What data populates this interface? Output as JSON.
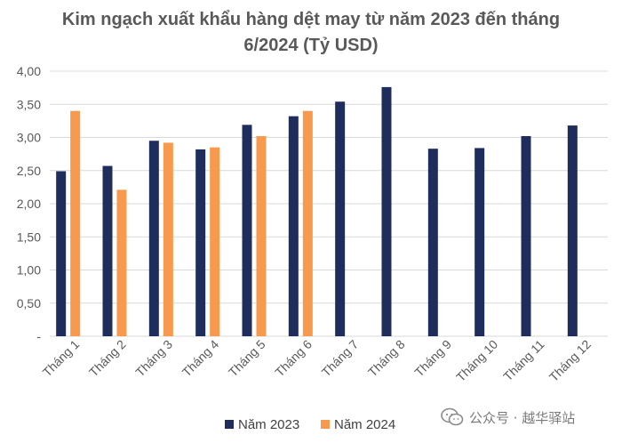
{
  "chart_data": {
    "type": "bar",
    "title_lines": [
      "Kim ngạch xuất khẩu hàng dệt may từ năm 2023 đến tháng",
      "6/2024 (Tỷ USD)"
    ],
    "categories": [
      "Tháng 1",
      "Tháng 2",
      "Tháng 3",
      "Tháng 4",
      "Tháng 5",
      "Tháng 6",
      "Tháng 7",
      "Tháng 8",
      "Tháng 9",
      "Tháng 10",
      "Tháng 11",
      "Tháng 12"
    ],
    "series": [
      {
        "name": "Năm 2023",
        "color": "#1f2d5c",
        "values": [
          2.49,
          2.57,
          2.95,
          2.82,
          3.19,
          3.32,
          3.54,
          3.76,
          2.83,
          2.84,
          3.02,
          3.18
        ]
      },
      {
        "name": "Năm 2024",
        "color": "#f79a4d",
        "values": [
          3.4,
          2.21,
          2.92,
          2.85,
          3.02,
          3.4,
          null,
          null,
          null,
          null,
          null,
          null
        ]
      }
    ],
    "ylim": [
      0,
      4
    ],
    "yticks": [
      {
        "value": 0,
        "label": "-"
      },
      {
        "value": 0.5,
        "label": "0,50"
      },
      {
        "value": 1.0,
        "label": "1,00"
      },
      {
        "value": 1.5,
        "label": "1,50"
      },
      {
        "value": 2.0,
        "label": "2,00"
      },
      {
        "value": 2.5,
        "label": "2,50"
      },
      {
        "value": 3.0,
        "label": "3,00"
      },
      {
        "value": 3.5,
        "label": "3,50"
      },
      {
        "value": 4.0,
        "label": "4,00"
      }
    ],
    "grid": true,
    "legend_position": "bottom"
  },
  "watermark": {
    "text": "公众号 · 越华驿站",
    "icon": "wechat-icon"
  }
}
